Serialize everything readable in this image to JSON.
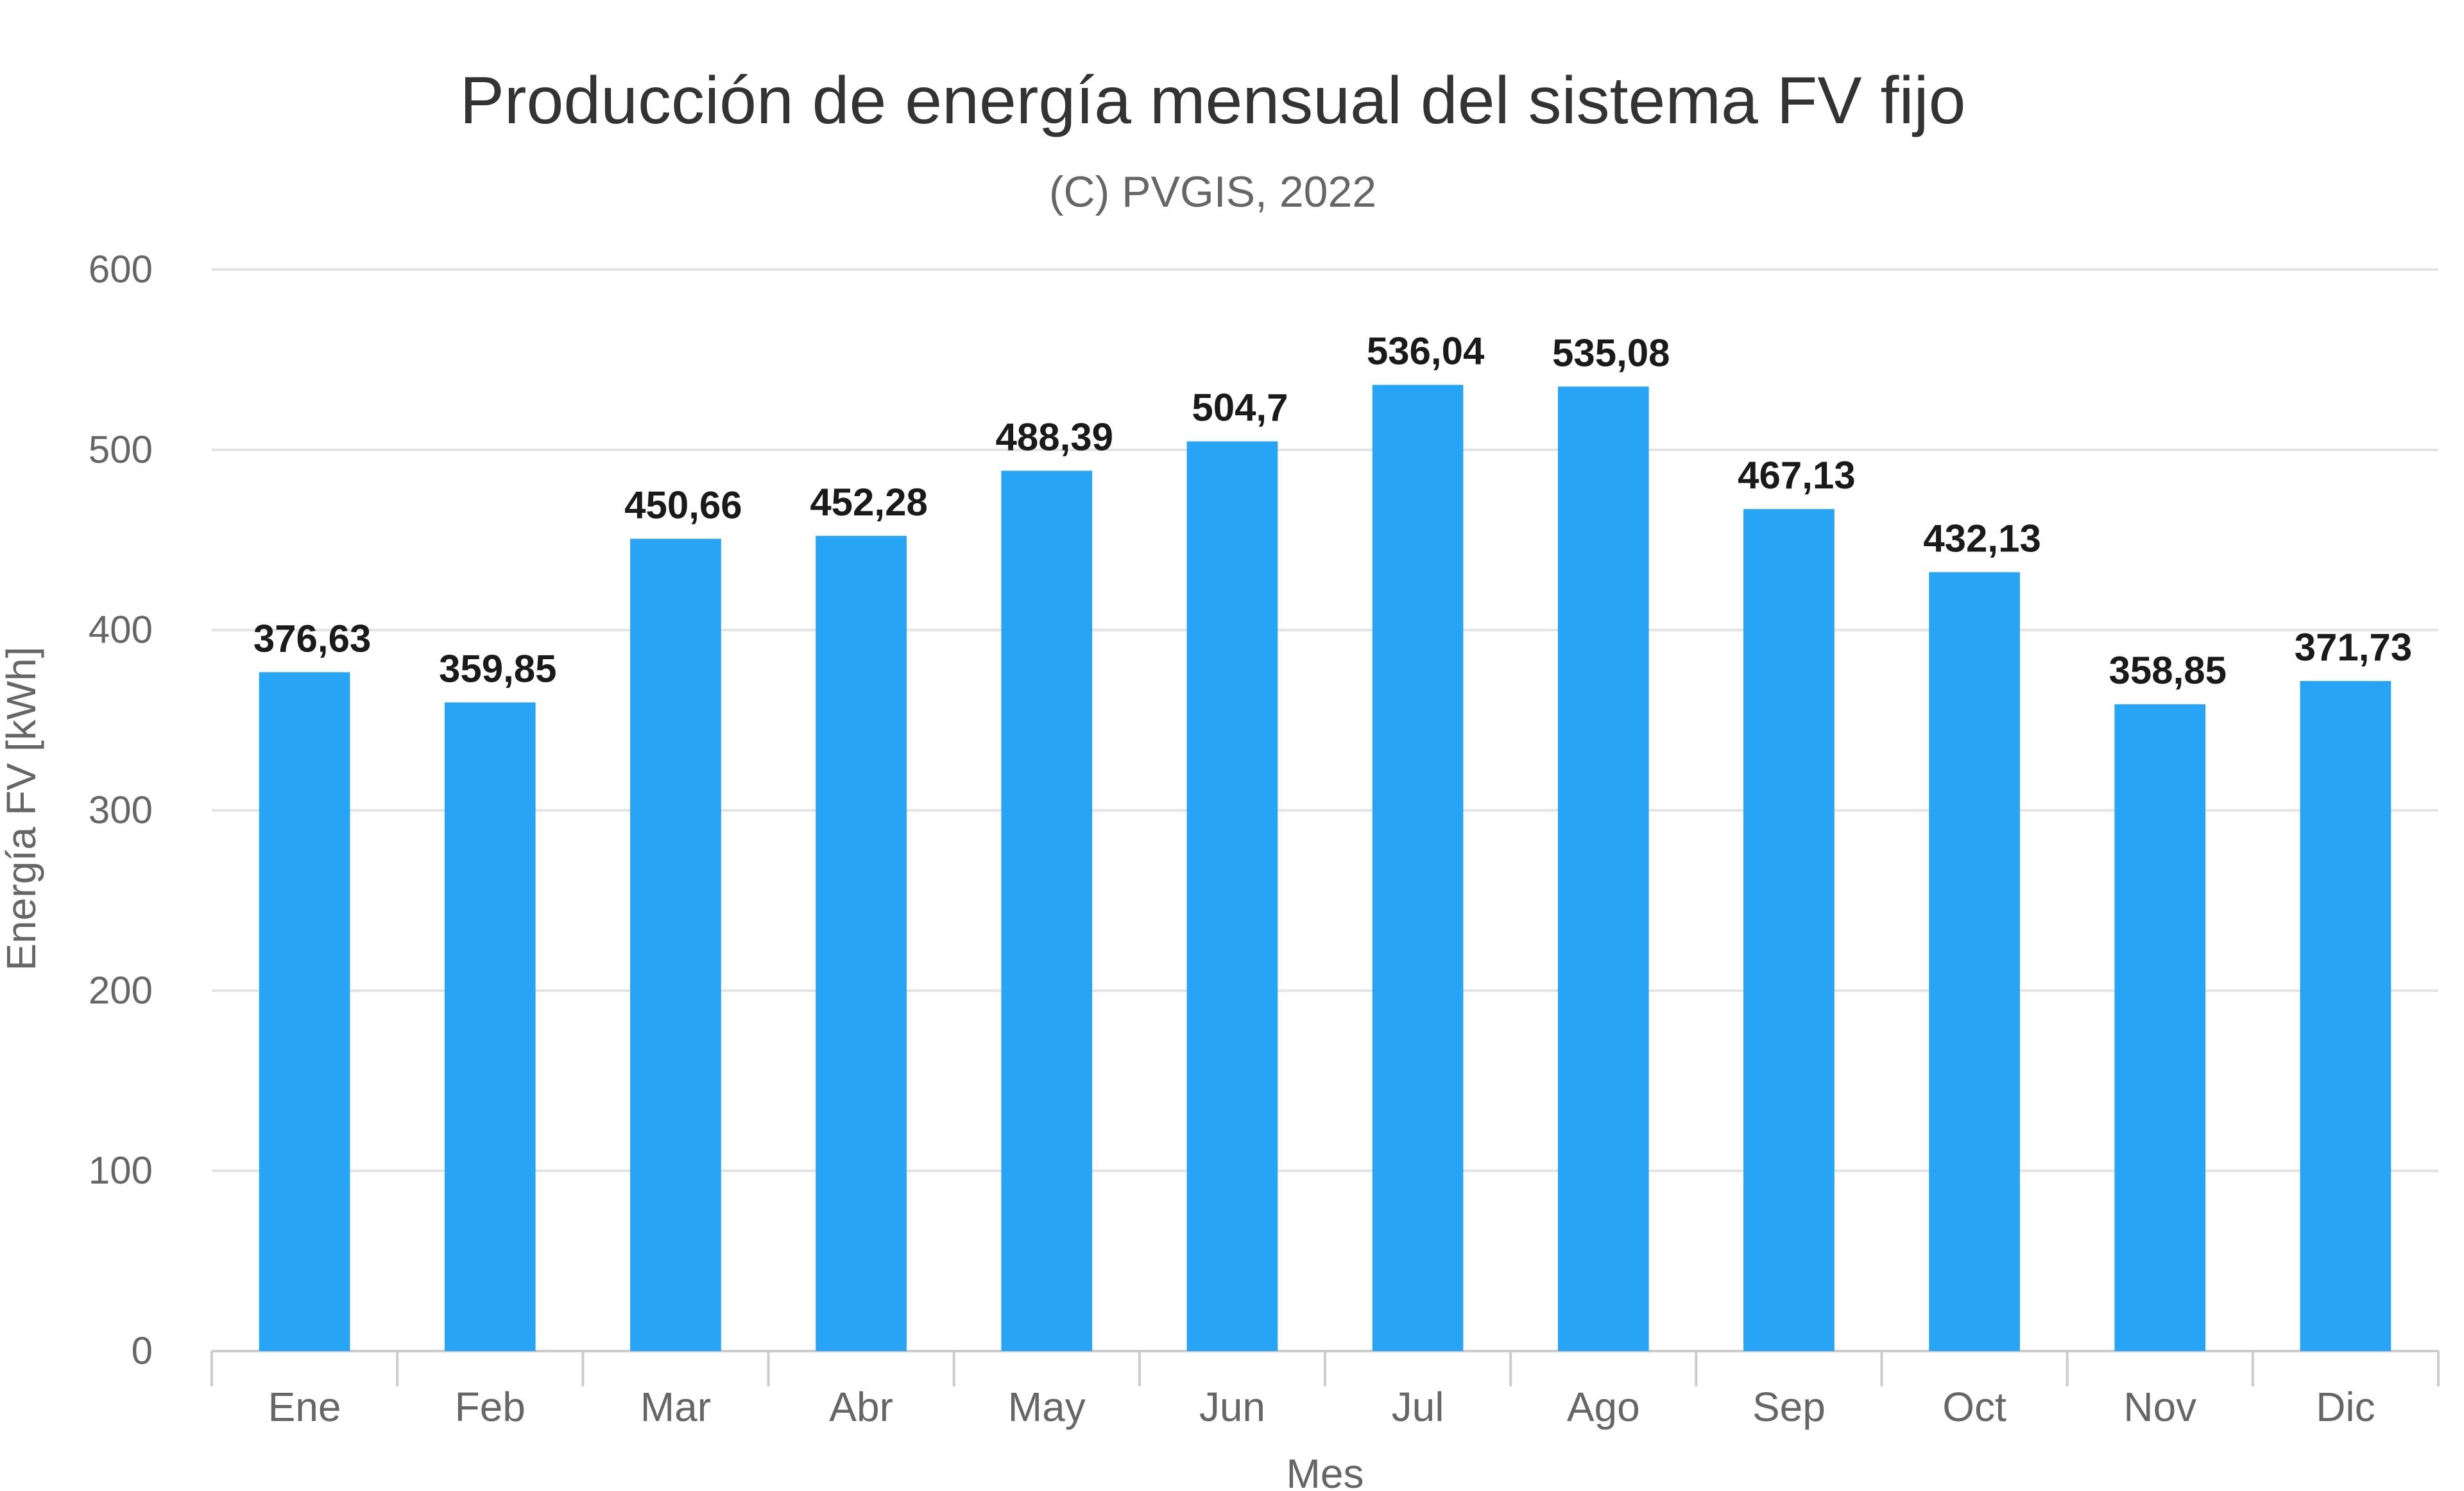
{
  "chart_data": {
    "type": "bar",
    "title": "Producción de energía mensual del sistema FV fijo",
    "subtitle": "(C) PVGIS, 2022",
    "xlabel": "Mes",
    "ylabel": "Energía FV [kWh]",
    "categories": [
      "Ene",
      "Feb",
      "Mar",
      "Abr",
      "May",
      "Jun",
      "Jul",
      "Ago",
      "Sep",
      "Oct",
      "Nov",
      "Dic"
    ],
    "values": [
      376.63,
      359.85,
      450.66,
      452.28,
      488.39,
      504.7,
      536.04,
      535.08,
      467.13,
      432.13,
      358.85,
      371.73
    ],
    "value_labels": [
      "376,63",
      "359,85",
      "450,66",
      "452,28",
      "488,39",
      "504,7",
      "536,04",
      "535,08",
      "467,13",
      "432,13",
      "358,85",
      "371,73"
    ],
    "ylim": [
      0,
      600
    ],
    "yticks": [
      0,
      100,
      200,
      300,
      400,
      500,
      600
    ],
    "grid": true,
    "bar_color": "#27a4f5",
    "legend": "none"
  }
}
